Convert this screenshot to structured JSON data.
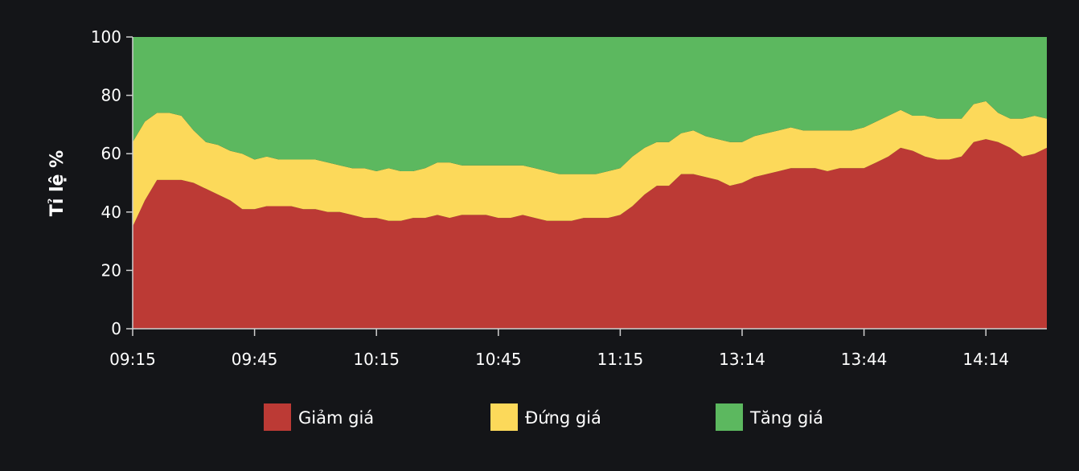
{
  "chart_data": {
    "type": "area",
    "stacked": true,
    "ylabel": "Tỉ lệ %",
    "ylim": [
      0,
      100
    ],
    "yticks": [
      0,
      20,
      40,
      60,
      80,
      100
    ],
    "xticks": [
      "09:15",
      "09:45",
      "10:15",
      "10:45",
      "11:15",
      "13:14",
      "13:44",
      "14:14"
    ],
    "grid": false,
    "legend": "bottom",
    "x": [
      "09:15",
      "09:18",
      "09:21",
      "09:24",
      "09:27",
      "09:30",
      "09:33",
      "09:36",
      "09:39",
      "09:42",
      "09:45",
      "09:48",
      "09:51",
      "09:54",
      "09:57",
      "10:00",
      "10:03",
      "10:06",
      "10:09",
      "10:12",
      "10:15",
      "10:18",
      "10:21",
      "10:24",
      "10:27",
      "10:30",
      "10:33",
      "10:36",
      "10:39",
      "10:42",
      "10:45",
      "10:48",
      "10:51",
      "10:54",
      "10:57",
      "11:00",
      "11:03",
      "11:06",
      "11:09",
      "11:12",
      "11:15",
      "11:18",
      "11:21",
      "11:24",
      "11:27",
      "11:30",
      "13:02",
      "13:05",
      "13:08",
      "13:11",
      "13:14",
      "13:17",
      "13:20",
      "13:23",
      "13:26",
      "13:29",
      "13:32",
      "13:35",
      "13:38",
      "13:41",
      "13:44",
      "13:47",
      "13:50",
      "13:53",
      "13:56",
      "13:59",
      "14:02",
      "14:05",
      "14:08",
      "14:11",
      "14:14",
      "14:17",
      "14:20",
      "14:23",
      "14:26",
      "14:29"
    ],
    "series": [
      {
        "name": "Giảm giá",
        "color": "#bc3a35",
        "values": [
          35,
          44,
          51,
          51,
          51,
          50,
          48,
          46,
          44,
          41,
          41,
          42,
          42,
          42,
          41,
          41,
          40,
          40,
          39,
          38,
          38,
          37,
          37,
          38,
          38,
          39,
          38,
          39,
          39,
          39,
          38,
          38,
          39,
          38,
          37,
          37,
          37,
          38,
          38,
          38,
          39,
          42,
          46,
          49,
          49,
          53,
          53,
          52,
          51,
          49,
          50,
          52,
          53,
          54,
          55,
          55,
          55,
          54,
          55,
          55,
          55,
          57,
          59,
          62,
          61,
          59,
          58,
          58,
          59,
          64,
          65,
          64,
          62,
          59,
          60,
          62
        ]
      },
      {
        "name": "Đứng giá",
        "color": "#fcd95a",
        "values": [
          29,
          27,
          23,
          23,
          22,
          18,
          16,
          17,
          17,
          19,
          17,
          17,
          16,
          16,
          17,
          17,
          17,
          16,
          16,
          17,
          16,
          18,
          17,
          16,
          17,
          18,
          19,
          17,
          17,
          17,
          18,
          18,
          17,
          17,
          17,
          16,
          16,
          15,
          15,
          16,
          16,
          17,
          16,
          15,
          15,
          14,
          15,
          14,
          14,
          15,
          14,
          14,
          14,
          14,
          14,
          13,
          13,
          14,
          13,
          13,
          14,
          14,
          14,
          13,
          12,
          14,
          14,
          14,
          13,
          13,
          13,
          10,
          10,
          13,
          13,
          10
        ]
      },
      {
        "name": "Tăng giá",
        "color": "#5cb85f",
        "values": [
          36,
          29,
          26,
          26,
          27,
          32,
          36,
          37,
          39,
          40,
          42,
          41,
          42,
          42,
          42,
          42,
          43,
          44,
          45,
          45,
          46,
          45,
          46,
          46,
          45,
          43,
          43,
          44,
          44,
          44,
          44,
          44,
          44,
          45,
          46,
          47,
          47,
          47,
          47,
          46,
          45,
          41,
          38,
          36,
          36,
          33,
          32,
          34,
          35,
          36,
          36,
          34,
          33,
          32,
          31,
          32,
          32,
          32,
          32,
          32,
          31,
          29,
          27,
          25,
          27,
          27,
          28,
          28,
          28,
          23,
          22,
          26,
          28,
          28,
          27,
          28
        ]
      }
    ]
  }
}
